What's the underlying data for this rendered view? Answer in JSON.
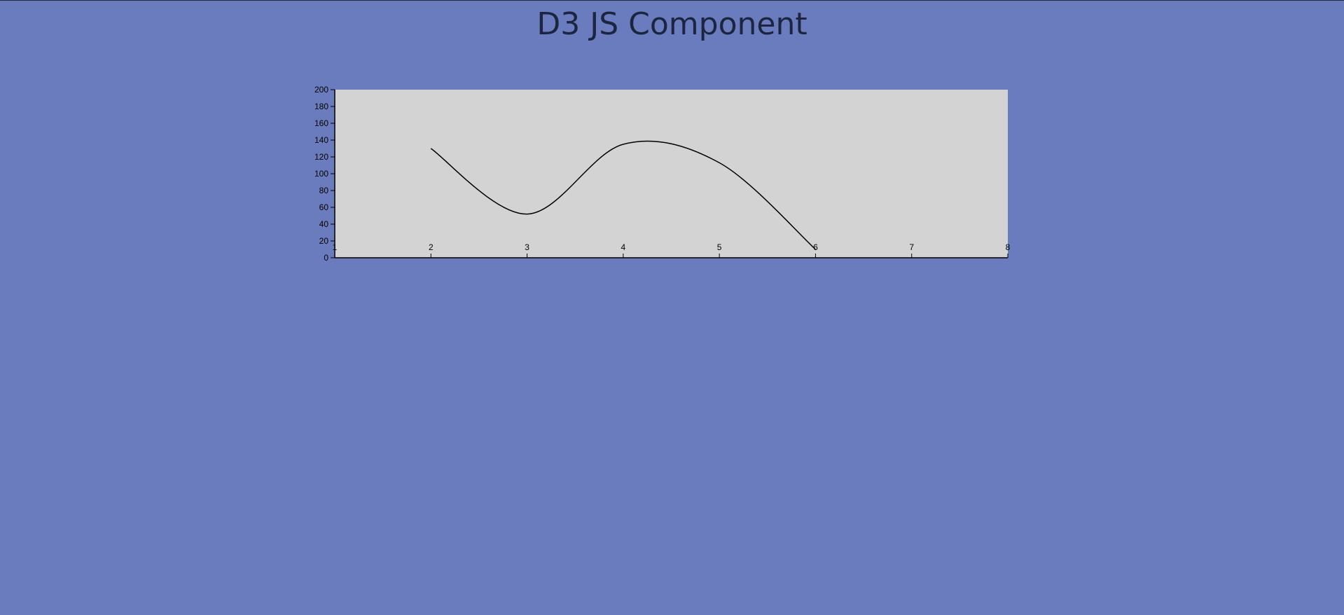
{
  "page": {
    "title": "D3 JS Component",
    "background_color": "#6a7cbe"
  },
  "chart_data": {
    "type": "line",
    "title": "",
    "xlabel": "",
    "ylabel": "",
    "x": [
      2,
      3,
      4,
      5,
      6
    ],
    "y": [
      130,
      52,
      135,
      113,
      10
    ],
    "xlim": [
      1,
      8
    ],
    "ylim": [
      0,
      200
    ],
    "x_ticks": [
      1,
      2,
      3,
      4,
      5,
      6,
      7,
      8
    ],
    "y_ticks": [
      0,
      20,
      40,
      60,
      80,
      100,
      120,
      140,
      160,
      180,
      200
    ],
    "curve": "smooth",
    "grid": false,
    "plot_background": "#d3d3d3",
    "line_color": "#000000"
  }
}
